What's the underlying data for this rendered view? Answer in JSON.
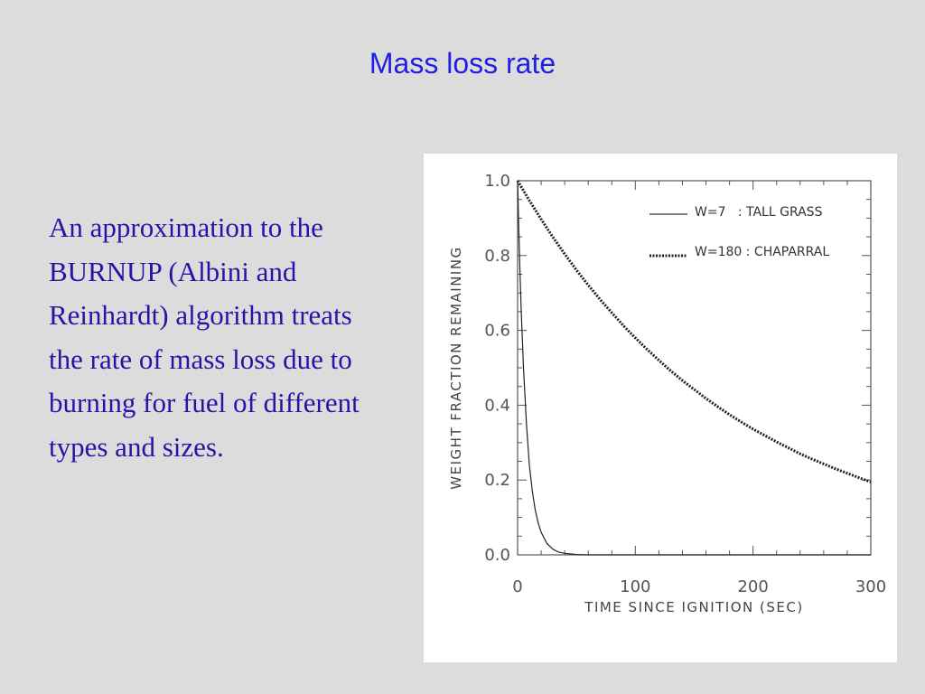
{
  "slide": {
    "title": "Mass loss rate",
    "body": "An approximation to the BURNUP (Albini and Reinhardt) algorithm treats the rate of mass loss due to burning for fuel of different types and sizes."
  },
  "colors": {
    "background": "#dcdcdc",
    "title": "#1f1fe6",
    "body_text": "#2e10a8",
    "chart_panel": "#ffffff",
    "series_line": "#222222"
  },
  "chart_data": {
    "type": "line",
    "title": "",
    "xlabel": "TIME SINCE IGNITION (SEC)",
    "ylabel": "WEIGHT FRACTION REMAINING",
    "xlim": [
      0,
      300
    ],
    "ylim": [
      0.0,
      1.0
    ],
    "xticks": [
      0,
      100,
      200,
      300
    ],
    "xtick_labels": [
      "0",
      "100",
      "200",
      "300"
    ],
    "yticks": [
      0.0,
      0.2,
      0.4,
      0.6,
      0.8,
      1.0
    ],
    "ytick_labels": [
      "0.0",
      "0.2",
      "0.4",
      "0.6",
      "0.8",
      "1.0"
    ],
    "grid": false,
    "legend_position": "top-right",
    "series": [
      {
        "name": "W=7   : TALL GRASS",
        "style": "solid",
        "x": [
          0,
          1,
          2,
          3,
          4,
          5,
          7.5,
          10,
          12.5,
          15,
          17.5,
          20,
          25,
          30,
          35,
          40,
          50,
          60,
          100,
          200,
          300
        ],
        "y": [
          1.0,
          0.87,
          0.76,
          0.66,
          0.58,
          0.5,
          0.35,
          0.24,
          0.17,
          0.12,
          0.085,
          0.06,
          0.03,
          0.015,
          0.007,
          0.004,
          0.001,
          0.0,
          0.0,
          0.0,
          0.0
        ]
      },
      {
        "name": "W=180 : CHAPARRAL",
        "style": "dotted",
        "x": [
          0,
          10,
          20,
          30,
          40,
          50,
          60,
          70,
          80,
          90,
          100,
          110,
          120,
          130,
          140,
          150,
          160,
          170,
          180,
          190,
          200,
          210,
          220,
          230,
          240,
          250,
          260,
          270,
          280,
          290,
          300
        ],
        "y": [
          1.0,
          0.947,
          0.897,
          0.849,
          0.804,
          0.761,
          0.721,
          0.683,
          0.647,
          0.612,
          0.58,
          0.549,
          0.52,
          0.492,
          0.466,
          0.442,
          0.418,
          0.396,
          0.375,
          0.355,
          0.336,
          0.319,
          0.302,
          0.286,
          0.27,
          0.256,
          0.243,
          0.23,
          0.218,
          0.206,
          0.195
        ]
      }
    ]
  }
}
